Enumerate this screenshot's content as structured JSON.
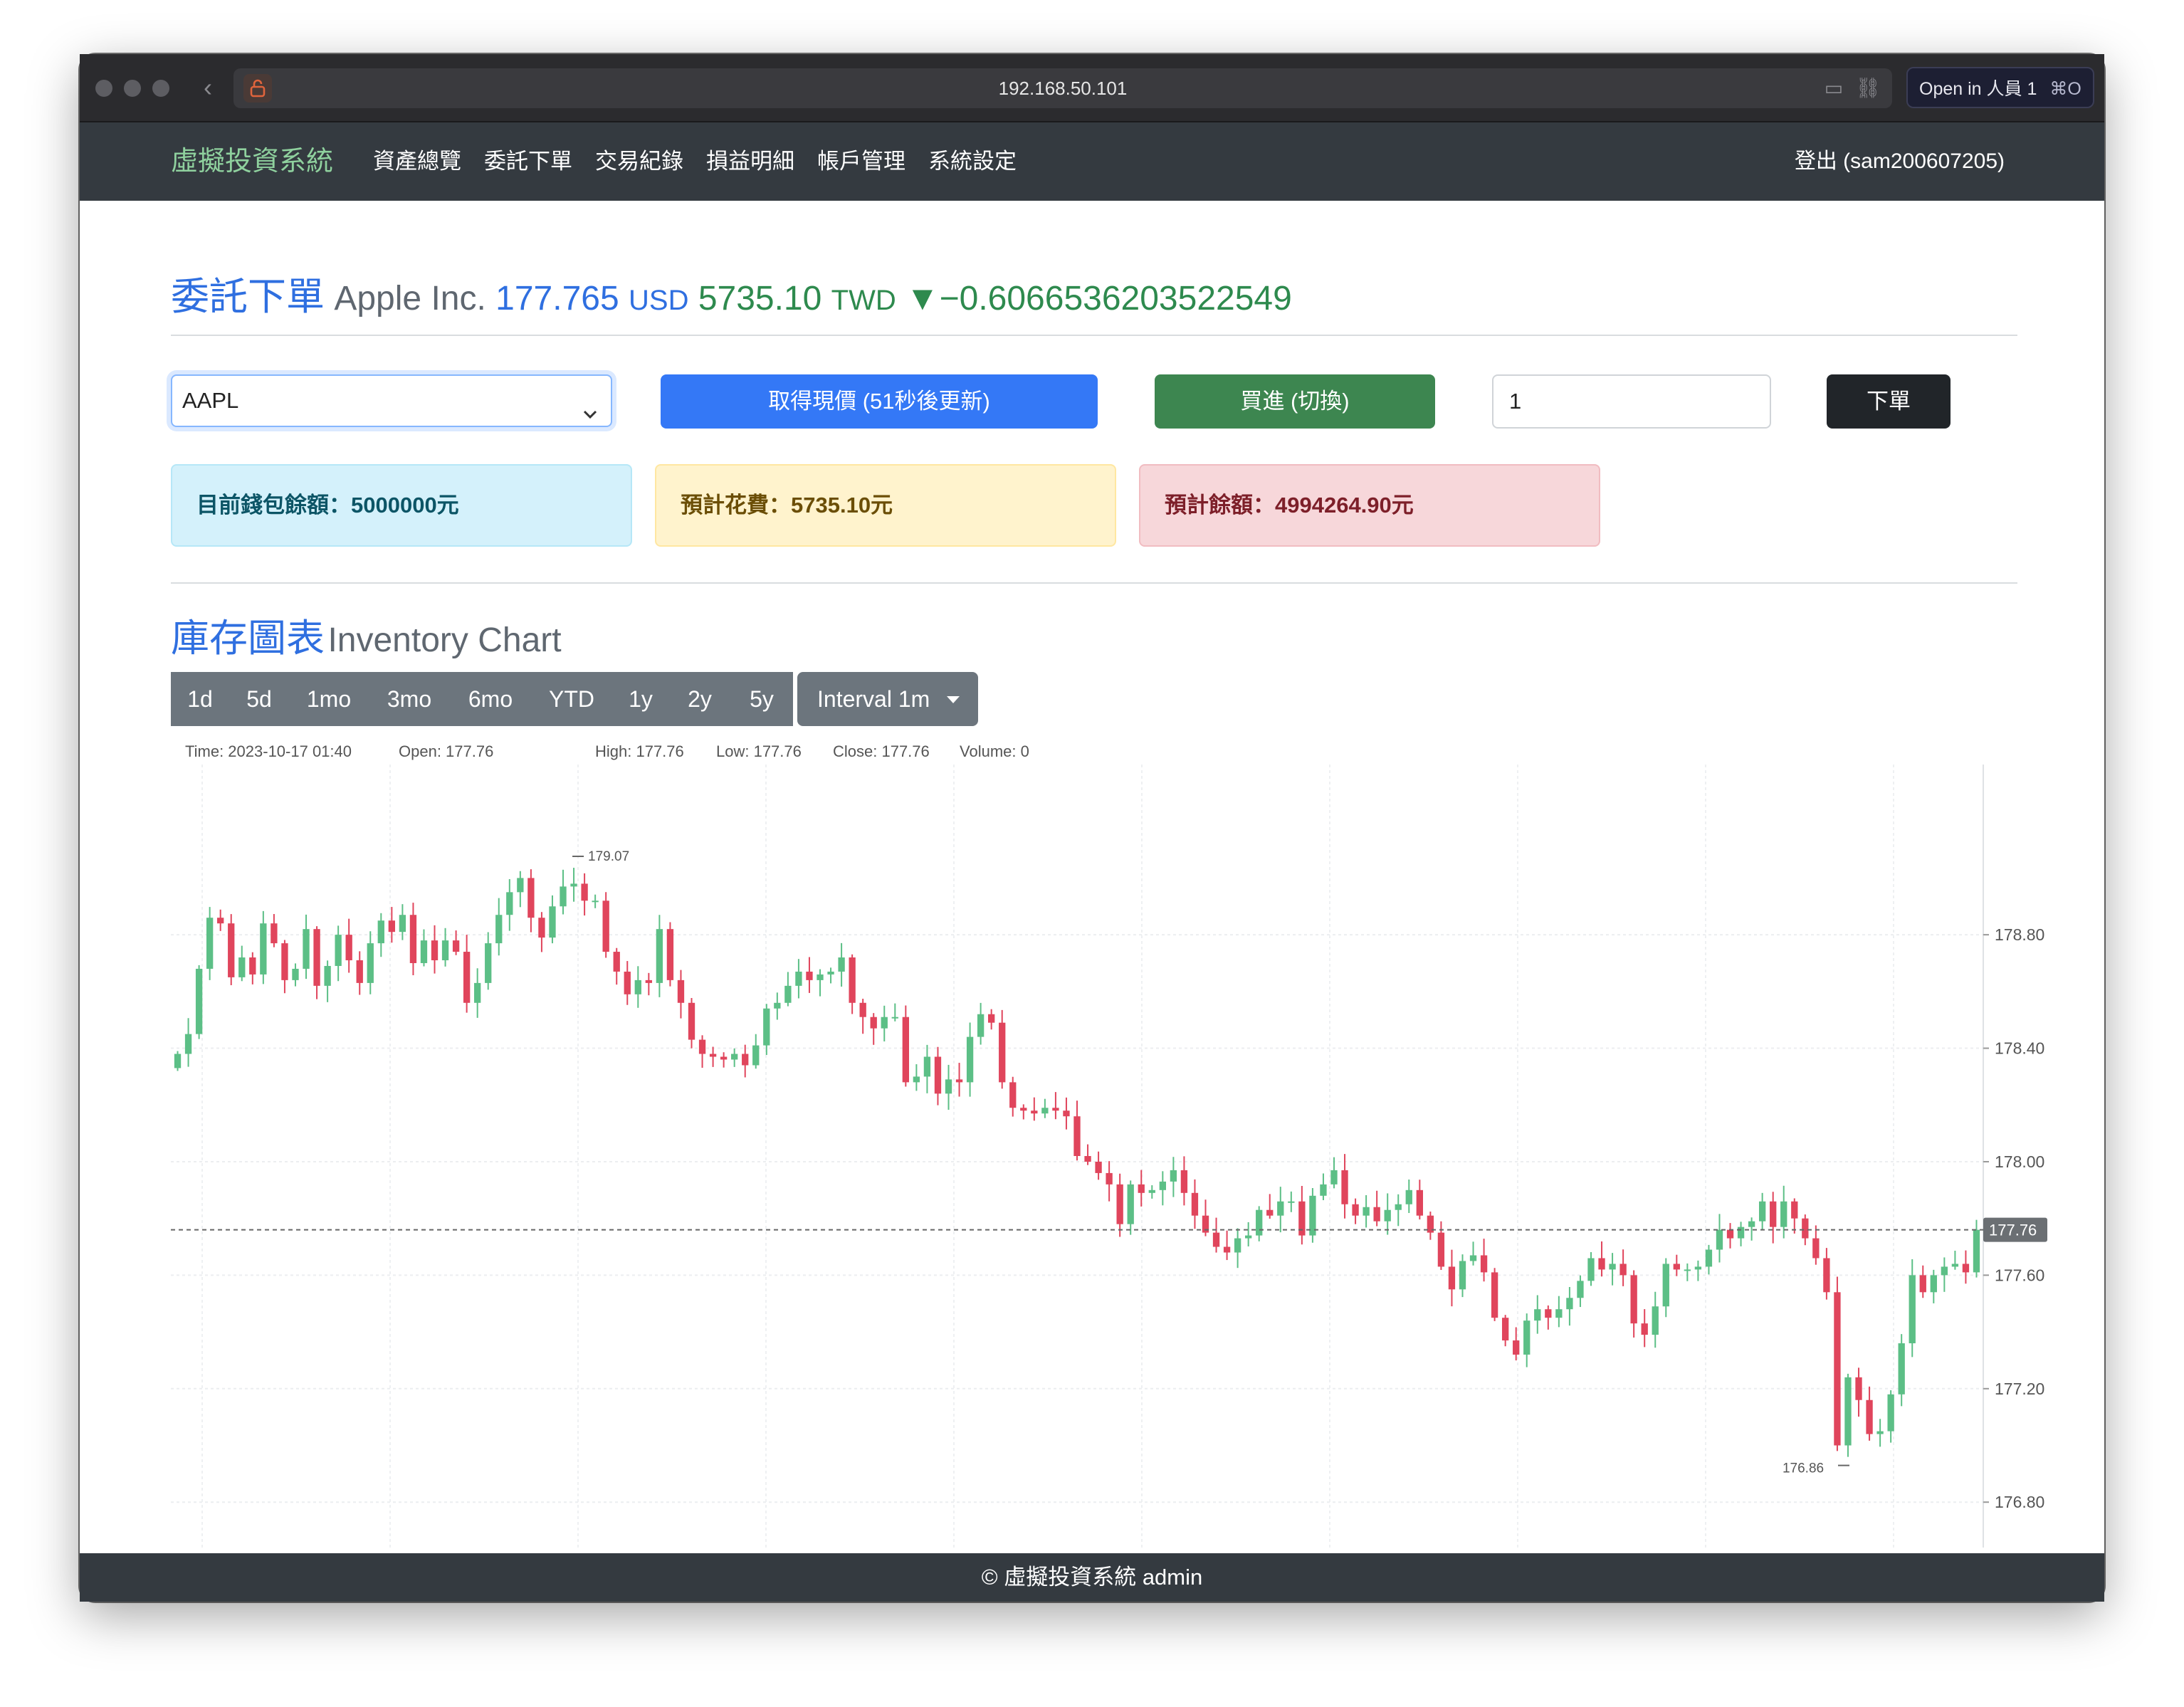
{
  "browser": {
    "url": "192.168.50.101",
    "open_in_label": "Open in 人員 1",
    "open_in_shortcut": "⌘O"
  },
  "navbar": {
    "brand": "虛擬投資系統",
    "links": [
      "資產總覽",
      "委託下單",
      "交易紀錄",
      "損益明細",
      "帳戶管理",
      "系統設定"
    ],
    "logout": "登出 (sam200607205)"
  },
  "order": {
    "title": "委託下單",
    "company": "Apple Inc.",
    "price_usd": "177.765",
    "usd_unit": "USD",
    "price_twd": "5735.10",
    "twd_unit": "TWD",
    "change": "▼−0.6066536203522549",
    "symbol": "AAPL",
    "refresh_button": "取得現價 (51秒後更新)",
    "side_button": "買進 (切換)",
    "quantity": "1",
    "submit_button": "下單",
    "wallet_balance": "目前錢包餘額：5000000元",
    "estimated_cost": "預計花費：5735.10元",
    "estimated_remaining": "預計餘額：4994264.90元"
  },
  "chart_section": {
    "title": "庫存圖表",
    "subtitle": "Inventory Chart",
    "ranges": [
      "1d",
      "5d",
      "1mo",
      "3mo",
      "6mo",
      "YTD",
      "1y",
      "2y",
      "5y"
    ],
    "interval_label": "Interval 1m",
    "legend": {
      "time": "Time: 2023-10-17 01:40",
      "open": "Open: 177.76",
      "high": "High: 177.76",
      "low": "Low: 177.76",
      "close": "Close: 177.76",
      "volume": "Volume: 0"
    },
    "colors": {
      "up": "#26a69a",
      "down": "#ef5350",
      "up_body": "#5cbf86",
      "down_body": "#e0455c"
    }
  },
  "chart_data": {
    "type": "candlestick",
    "y_ticks": [
      178.8,
      178.4,
      178.0,
      177.6,
      177.2,
      176.8
    ],
    "y_tick_labels": [
      "178.80",
      "178.40",
      "178.00",
      "177.60",
      "177.20",
      "176.80"
    ],
    "ylim": [
      176.64,
      179.4
    ],
    "last_price": 177.76,
    "last_price_label": "177.76",
    "max_label": "179.07",
    "min_label": "176.86",
    "closes": [
      178.38,
      178.45,
      178.68,
      178.86,
      178.84,
      178.65,
      178.72,
      178.66,
      178.84,
      178.77,
      178.64,
      178.68,
      178.82,
      178.62,
      178.69,
      178.8,
      178.71,
      178.63,
      178.77,
      178.85,
      178.81,
      178.87,
      178.7,
      178.78,
      178.71,
      178.78,
      178.74,
      178.56,
      178.63,
      178.77,
      178.87,
      178.95,
      179.0,
      178.86,
      178.79,
      178.9,
      178.97,
      178.98,
      178.92,
      178.92,
      178.74,
      178.67,
      178.59,
      178.64,
      178.63,
      178.82,
      178.64,
      178.56,
      178.43,
      178.38,
      178.37,
      178.36,
      178.38,
      178.34,
      178.41,
      178.54,
      178.56,
      178.62,
      178.67,
      178.64,
      178.66,
      178.67,
      178.72,
      178.56,
      178.51,
      178.47,
      178.51,
      178.51,
      178.28,
      178.3,
      178.37,
      178.24,
      178.29,
      178.28,
      178.44,
      178.52,
      178.49,
      178.28,
      178.19,
      178.18,
      178.17,
      178.19,
      178.18,
      178.16,
      178.02,
      178.0,
      177.96,
      177.92,
      177.78,
      177.92,
      177.89,
      177.9,
      177.93,
      177.97,
      177.89,
      177.81,
      177.75,
      177.7,
      177.68,
      177.73,
      177.74,
      177.83,
      177.81,
      177.86,
      177.86,
      177.74,
      177.88,
      177.92,
      177.97,
      177.85,
      177.81,
      177.84,
      177.79,
      177.83,
      177.85,
      177.9,
      177.81,
      177.75,
      177.63,
      177.55,
      177.65,
      177.67,
      177.61,
      177.45,
      177.37,
      177.32,
      177.44,
      177.48,
      177.45,
      177.48,
      177.52,
      177.58,
      177.66,
      177.62,
      177.64,
      177.6,
      177.43,
      177.39,
      177.49,
      177.64,
      177.62,
      177.62,
      177.63,
      177.69,
      177.76,
      177.73,
      177.77,
      177.79,
      177.86,
      177.77,
      177.86,
      177.8,
      177.73,
      177.66,
      177.54,
      177.0,
      177.24,
      177.16,
      177.04,
      177.05,
      177.18,
      177.36,
      177.6,
      177.54,
      177.6,
      177.63,
      177.64,
      177.61,
      177.76
    ]
  }
}
